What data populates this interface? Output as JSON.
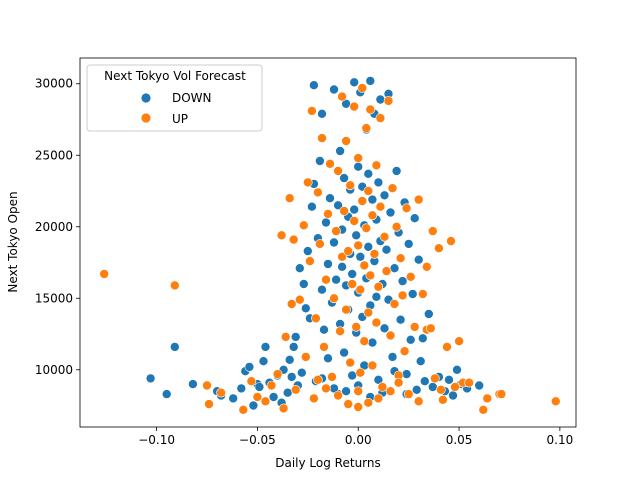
{
  "chart_data": {
    "type": "scatter",
    "title": "",
    "xlabel": "Daily Log Returns",
    "ylabel": "Next Tokyo Open",
    "xlim": [
      -0.138,
      0.108
    ],
    "ylim": [
      6000,
      31800
    ],
    "xticks": [
      -0.1,
      -0.05,
      0.0,
      0.05,
      0.1
    ],
    "xtick_labels": [
      "−0.10",
      "−0.05",
      "0.00",
      "0.05",
      "0.10"
    ],
    "yticks": [
      10000,
      15000,
      20000,
      25000,
      30000
    ],
    "ytick_labels": [
      "10000",
      "15000",
      "20000",
      "25000",
      "30000"
    ],
    "grid": false,
    "legend": {
      "title": "Next Tokyo Vol Forecast",
      "position": "top-left",
      "entries": [
        "DOWN",
        "UP"
      ]
    },
    "series": [
      {
        "name": "DOWN",
        "color": "#1f77b4",
        "points": [
          [
            -0.103,
            9400
          ],
          [
            -0.095,
            8300
          ],
          [
            -0.091,
            11600
          ],
          [
            -0.082,
            9000
          ],
          [
            -0.07,
            8500
          ],
          [
            -0.068,
            8200
          ],
          [
            -0.062,
            8000
          ],
          [
            -0.058,
            8700
          ],
          [
            -0.056,
            9900
          ],
          [
            -0.054,
            10200
          ],
          [
            -0.052,
            7500
          ],
          [
            -0.05,
            9000
          ],
          [
            -0.049,
            8800
          ],
          [
            -0.047,
            10600
          ],
          [
            -0.046,
            11600
          ],
          [
            -0.044,
            9100
          ],
          [
            -0.042,
            8100
          ],
          [
            -0.04,
            9600
          ],
          [
            -0.038,
            7700
          ],
          [
            -0.037,
            10000
          ],
          [
            -0.035,
            8400
          ],
          [
            -0.034,
            10700
          ],
          [
            -0.033,
            9500
          ],
          [
            -0.031,
            12300
          ],
          [
            -0.03,
            8900
          ],
          [
            -0.029,
            17100
          ],
          [
            -0.028,
            9800
          ],
          [
            -0.027,
            16000
          ],
          [
            -0.026,
            14300
          ],
          [
            -0.025,
            18300
          ],
          [
            -0.024,
            13600
          ],
          [
            -0.023,
            21400
          ],
          [
            -0.022,
            23000
          ],
          [
            -0.022,
            29900
          ],
          [
            -0.021,
            9200
          ],
          [
            -0.02,
            19200
          ],
          [
            -0.019,
            24600
          ],
          [
            -0.018,
            27900
          ],
          [
            -0.018,
            15600
          ],
          [
            -0.017,
            12800
          ],
          [
            -0.016,
            20300
          ],
          [
            -0.015,
            17400
          ],
          [
            -0.015,
            10800
          ],
          [
            -0.014,
            22000
          ],
          [
            -0.013,
            14700
          ],
          [
            -0.012,
            18900
          ],
          [
            -0.012,
            29600
          ],
          [
            -0.011,
            16300
          ],
          [
            -0.01,
            8300
          ],
          [
            -0.01,
            21500
          ],
          [
            -0.009,
            13200
          ],
          [
            -0.009,
            25300
          ],
          [
            -0.008,
            19800
          ],
          [
            -0.008,
            17200
          ],
          [
            -0.007,
            23400
          ],
          [
            -0.007,
            11200
          ],
          [
            -0.006,
            15900
          ],
          [
            -0.006,
            28600
          ],
          [
            -0.005,
            20700
          ],
          [
            -0.005,
            14200
          ],
          [
            -0.004,
            18100
          ],
          [
            -0.004,
            22600
          ],
          [
            -0.003,
            9600
          ],
          [
            -0.003,
            16700
          ],
          [
            -0.002,
            30100
          ],
          [
            -0.002,
            21200
          ],
          [
            -0.001,
            12600
          ],
          [
            -0.001,
            19400
          ],
          [
            0.0,
            24200
          ],
          [
            0.0,
            15400
          ],
          [
            0.001,
            17900
          ],
          [
            0.001,
            29400
          ],
          [
            0.002,
            22800
          ],
          [
            0.002,
            13700
          ],
          [
            0.003,
            20100
          ],
          [
            0.003,
            10300
          ],
          [
            0.004,
            16400
          ],
          [
            0.004,
            26800
          ],
          [
            0.005,
            23700
          ],
          [
            0.005,
            18600
          ],
          [
            0.006,
            14500
          ],
          [
            0.006,
            30200
          ],
          [
            0.007,
            21900
          ],
          [
            0.007,
            11900
          ],
          [
            0.008,
            17600
          ],
          [
            0.008,
            27900
          ],
          [
            0.009,
            20500
          ],
          [
            0.009,
            15100
          ],
          [
            0.01,
            9300
          ],
          [
            0.01,
            23100
          ],
          [
            0.011,
            19000
          ],
          [
            0.011,
            28900
          ],
          [
            0.012,
            16000
          ],
          [
            0.013,
            22200
          ],
          [
            0.013,
            12900
          ],
          [
            0.014,
            18400
          ],
          [
            0.015,
            29300
          ],
          [
            0.015,
            14900
          ],
          [
            0.016,
            21000
          ],
          [
            0.017,
            10900
          ],
          [
            0.018,
            17100
          ],
          [
            0.019,
            23900
          ],
          [
            0.02,
            19600
          ],
          [
            0.021,
            13500
          ],
          [
            0.022,
            16200
          ],
          [
            0.023,
            21700
          ],
          [
            0.024,
            9700
          ],
          [
            0.025,
            18800
          ],
          [
            0.026,
            12100
          ],
          [
            0.027,
            15300
          ],
          [
            0.028,
            20600
          ],
          [
            0.029,
            8600
          ],
          [
            0.03,
            17700
          ],
          [
            0.031,
            10600
          ],
          [
            0.033,
            9200
          ],
          [
            0.035,
            13900
          ],
          [
            0.037,
            8800
          ],
          [
            0.04,
            9500
          ],
          [
            0.043,
            8500
          ],
          [
            0.045,
            9300
          ],
          [
            0.047,
            8200
          ],
          [
            0.049,
            10000
          ],
          [
            0.051,
            9000
          ],
          [
            0.054,
            8700
          ],
          [
            0.06,
            8900
          ],
          [
            -0.032,
            11600
          ],
          [
            0.032,
            12200
          ],
          [
            -0.018,
            9400
          ],
          [
            0.018,
            9900
          ],
          [
            0.0,
            8900
          ],
          [
            -0.006,
            8500
          ],
          [
            0.006,
            8100
          ],
          [
            0.012,
            8400
          ],
          [
            -0.012,
            8700
          ],
          [
            0.024,
            8300
          ]
        ]
      },
      {
        "name": "UP",
        "color": "#ff7f0e",
        "points": [
          [
            -0.126,
            16700
          ],
          [
            -0.091,
            15900
          ],
          [
            -0.075,
            8900
          ],
          [
            -0.074,
            7600
          ],
          [
            -0.068,
            8400
          ],
          [
            -0.057,
            7200
          ],
          [
            -0.053,
            9200
          ],
          [
            -0.05,
            8100
          ],
          [
            -0.046,
            7800
          ],
          [
            -0.043,
            8900
          ],
          [
            -0.04,
            9700
          ],
          [
            -0.037,
            7300
          ],
          [
            -0.036,
            12300
          ],
          [
            -0.034,
            22000
          ],
          [
            -0.032,
            19100
          ],
          [
            -0.031,
            8600
          ],
          [
            -0.029,
            14900
          ],
          [
            -0.027,
            20100
          ],
          [
            -0.026,
            10900
          ],
          [
            -0.025,
            23100
          ],
          [
            -0.024,
            17600
          ],
          [
            -0.023,
            28100
          ],
          [
            -0.022,
            8000
          ],
          [
            -0.021,
            13600
          ],
          [
            -0.02,
            22400
          ],
          [
            -0.019,
            18800
          ],
          [
            -0.018,
            26200
          ],
          [
            -0.017,
            11600
          ],
          [
            -0.016,
            16300
          ],
          [
            -0.015,
            20900
          ],
          [
            -0.014,
            24400
          ],
          [
            -0.013,
            9500
          ],
          [
            -0.012,
            15000
          ],
          [
            -0.011,
            19700
          ],
          [
            -0.01,
            23900
          ],
          [
            -0.009,
            12700
          ],
          [
            -0.008,
            17900
          ],
          [
            -0.008,
            29100
          ],
          [
            -0.007,
            21100
          ],
          [
            -0.006,
            14200
          ],
          [
            -0.006,
            26000
          ],
          [
            -0.005,
            18300
          ],
          [
            -0.004,
            10500
          ],
          [
            -0.004,
            22900
          ],
          [
            -0.003,
            16000
          ],
          [
            -0.002,
            28400
          ],
          [
            -0.002,
            20400
          ],
          [
            -0.001,
            13000
          ],
          [
            0.0,
            18700
          ],
          [
            0.0,
            24800
          ],
          [
            0.001,
            9800
          ],
          [
            0.001,
            15600
          ],
          [
            0.002,
            21800
          ],
          [
            0.002,
            29700
          ],
          [
            0.003,
            17300
          ],
          [
            0.003,
            12000
          ],
          [
            0.004,
            19900
          ],
          [
            0.004,
            26900
          ],
          [
            0.005,
            14000
          ],
          [
            0.005,
            22500
          ],
          [
            0.006,
            16600
          ],
          [
            0.006,
            28200
          ],
          [
            0.007,
            10300
          ],
          [
            0.007,
            20800
          ],
          [
            0.008,
            18100
          ],
          [
            0.009,
            24300
          ],
          [
            0.009,
            13300
          ],
          [
            0.01,
            15800
          ],
          [
            0.011,
            21400
          ],
          [
            0.011,
            27600
          ],
          [
            0.012,
            8800
          ],
          [
            0.013,
            19300
          ],
          [
            0.014,
            16900
          ],
          [
            0.015,
            28800
          ],
          [
            0.016,
            12400
          ],
          [
            0.017,
            22700
          ],
          [
            0.018,
            14600
          ],
          [
            0.019,
            20000
          ],
          [
            0.02,
            9600
          ],
          [
            0.021,
            17800
          ],
          [
            0.022,
            15200
          ],
          [
            0.023,
            11300
          ],
          [
            0.024,
            21300
          ],
          [
            0.025,
            8300
          ],
          [
            0.026,
            16500
          ],
          [
            0.028,
            13000
          ],
          [
            0.03,
            7800
          ],
          [
            0.032,
            15300
          ],
          [
            0.034,
            12800
          ],
          [
            0.036,
            12900
          ],
          [
            0.037,
            19700
          ],
          [
            0.038,
            9400
          ],
          [
            0.04,
            18500
          ],
          [
            0.041,
            8600
          ],
          [
            0.042,
            7900
          ],
          [
            0.044,
            11600
          ],
          [
            0.046,
            19000
          ],
          [
            0.048,
            8800
          ],
          [
            0.05,
            12000
          ],
          [
            0.052,
            9100
          ],
          [
            0.055,
            9100
          ],
          [
            0.062,
            7200
          ],
          [
            0.064,
            8000
          ],
          [
            0.07,
            8300
          ],
          [
            0.071,
            8300
          ],
          [
            0.098,
            7800
          ],
          [
            0.03,
            21900
          ],
          [
            0.034,
            17200
          ],
          [
            -0.038,
            19400
          ],
          [
            -0.033,
            14600
          ],
          [
            0.0,
            8500
          ],
          [
            -0.005,
            7600
          ],
          [
            0.005,
            7700
          ],
          [
            -0.01,
            8200
          ],
          [
            0.01,
            8000
          ],
          [
            -0.016,
            8700
          ],
          [
            0.016,
            8500
          ],
          [
            -0.02,
            9300
          ],
          [
            0.02,
            9100
          ],
          [
            0.0,
            7400
          ]
        ]
      }
    ]
  }
}
